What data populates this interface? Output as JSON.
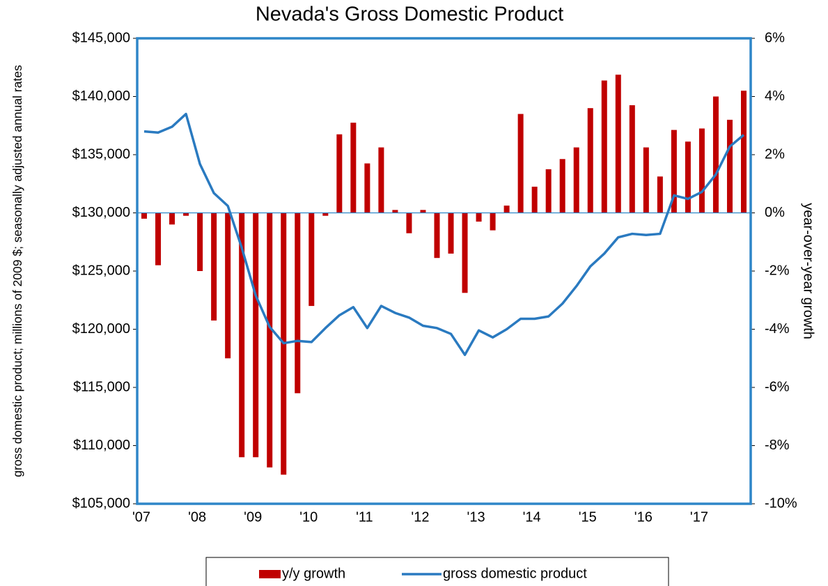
{
  "chart_data": {
    "type": "combo",
    "title": "Nevada's Gross Domestic Product",
    "y_label": "gross domestic product; millions of 2009 $; seasonally adjusted annual rates",
    "y2_label": "year-over-year growth",
    "categories": [
      "'07",
      null,
      null,
      null,
      "'08",
      null,
      null,
      null,
      "'09",
      null,
      null,
      null,
      "'10",
      null,
      null,
      null,
      "'11",
      null,
      null,
      null,
      "'12",
      null,
      null,
      null,
      "'13",
      null,
      null,
      null,
      "'14",
      null,
      null,
      null,
      "'15",
      null,
      null,
      null,
      "'16",
      null,
      null,
      null,
      "'17",
      null,
      null,
      null
    ],
    "series": [
      {
        "name": "y/y growth",
        "type": "bar",
        "axis": "y2",
        "color": "#c00000",
        "values": [
          -0.2,
          -1.8,
          -0.4,
          -0.1,
          -2.0,
          -3.7,
          -5.0,
          -8.4,
          -8.4,
          -8.75,
          -9.0,
          -6.2,
          -3.2,
          -0.1,
          2.7,
          3.1,
          1.7,
          2.25,
          0.1,
          -0.7,
          0.1,
          -1.55,
          -1.4,
          -2.75,
          -0.3,
          -0.6,
          0.25,
          3.4,
          0.9,
          1.5,
          1.85,
          2.25,
          3.6,
          4.55,
          4.75,
          3.7,
          2.25,
          1.25,
          2.85,
          2.45,
          2.9,
          4.0,
          3.2,
          4.2
        ]
      },
      {
        "name": "gross domestic product",
        "type": "line",
        "axis": "y",
        "color": "#2a7ac0",
        "values": [
          137000,
          136900,
          137400,
          138500,
          134200,
          131700,
          130600,
          127000,
          122900,
          120200,
          118800,
          119000,
          118900,
          120100,
          121200,
          121900,
          120100,
          122000,
          121400,
          121000,
          120300,
          120100,
          119600,
          117800,
          119900,
          119300,
          120000,
          120900,
          120900,
          121100,
          122200,
          123700,
          125400,
          126500,
          127900,
          128200,
          128100,
          128200,
          131500,
          131200,
          131800,
          133300,
          135700,
          136700
        ]
      }
    ],
    "ylim": [
      105000,
      145000
    ],
    "yticks": [
      {
        "value": 105000,
        "label": "$105,000"
      },
      {
        "value": 110000,
        "label": "$110,000"
      },
      {
        "value": 115000,
        "label": "$115,000"
      },
      {
        "value": 120000,
        "label": "$120,000"
      },
      {
        "value": 125000,
        "label": "$125,000"
      },
      {
        "value": 130000,
        "label": "$130,000"
      },
      {
        "value": 135000,
        "label": "$135,000"
      },
      {
        "value": 140000,
        "label": "$140,000"
      },
      {
        "value": 145000,
        "label": "$145,000"
      }
    ],
    "y2lim": [
      -10,
      6
    ],
    "y2ticks": [
      {
        "value": -10,
        "label": "-10%"
      },
      {
        "value": -8,
        "label": "-8%"
      },
      {
        "value": -6,
        "label": "-6%"
      },
      {
        "value": -4,
        "label": "-4%"
      },
      {
        "value": -2,
        "label": "-2%"
      },
      {
        "value": 0,
        "label": "0%"
      },
      {
        "value": 2,
        "label": "2%"
      },
      {
        "value": 4,
        "label": "4%"
      },
      {
        "value": 6,
        "label": "6%"
      }
    ],
    "frame_color": "#2e86c8",
    "legend": "bottom"
  }
}
